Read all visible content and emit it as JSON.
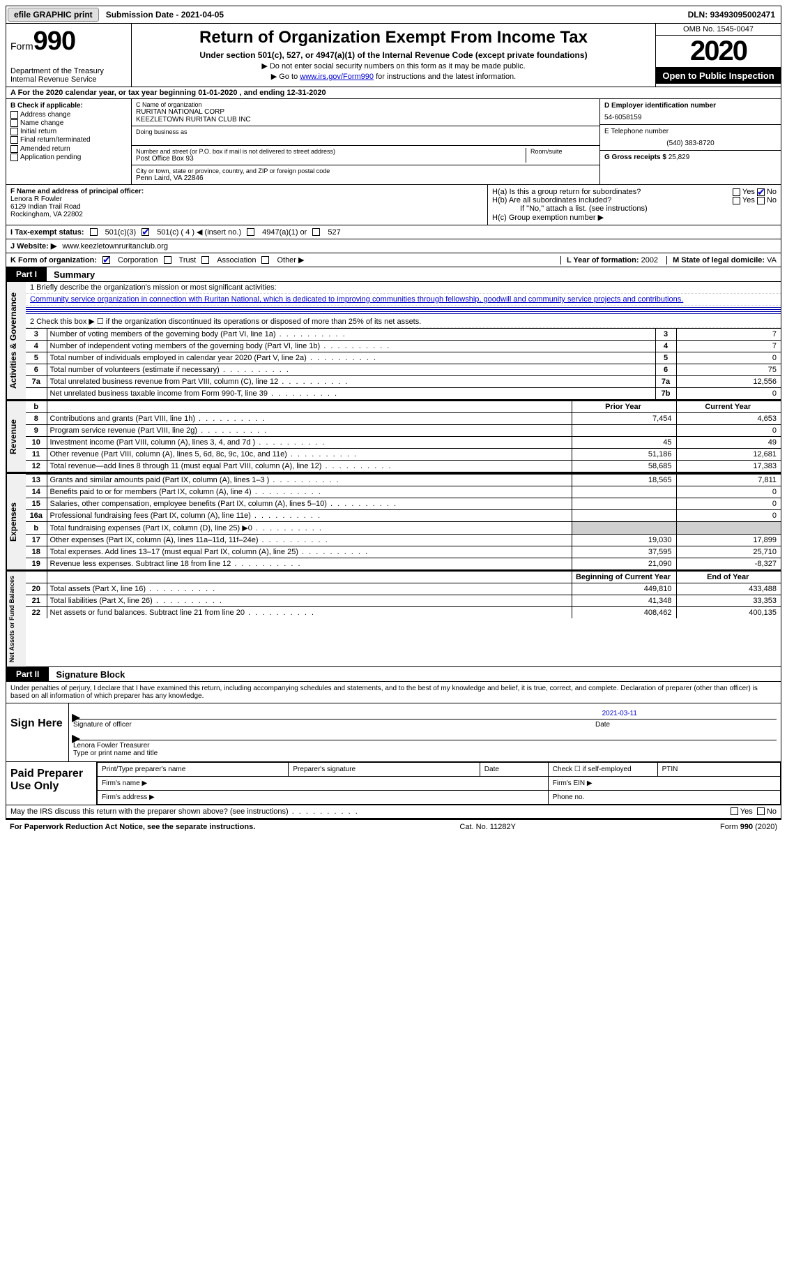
{
  "topbar": {
    "efile": "efile GRAPHIC print",
    "sub_label": "Submission Date - ",
    "sub_date": "2021-04-05",
    "dln_label": "DLN: ",
    "dln": "93493095002471"
  },
  "header": {
    "form_label": "Form",
    "form_num": "990",
    "dept": "Department of the Treasury\nInternal Revenue Service",
    "title": "Return of Organization Exempt From Income Tax",
    "sub1": "Under section 501(c), 527, or 4947(a)(1) of the Internal Revenue Code (except private foundations)",
    "sub2": "▶ Do not enter social security numbers on this form as it may be made public.",
    "sub3_pre": "▶ Go to ",
    "sub3_link": "www.irs.gov/Form990",
    "sub3_post": " for instructions and the latest information.",
    "omb": "OMB No. 1545-0047",
    "year": "2020",
    "inspect": "Open to Public Inspection"
  },
  "period": "A For the 2020 calendar year, or tax year beginning 01-01-2020    , and ending 12-31-2020",
  "boxB": {
    "header": "B Check if applicable:",
    "items": [
      "Address change",
      "Name change",
      "Initial return",
      "Final return/terminated",
      "Amended return",
      "Application pending"
    ]
  },
  "boxC": {
    "name_label": "C Name of organization",
    "name1": "RURITAN NATIONAL CORP",
    "name2": "KEEZLETOWN RURITAN CLUB INC",
    "dba_label": "Doing business as",
    "addr_label": "Number and street (or P.O. box if mail is not delivered to street address)",
    "room_label": "Room/suite",
    "addr": "Post Office Box 93",
    "city_label": "City or town, state or province, country, and ZIP or foreign postal code",
    "city": "Penn Laird, VA  22846"
  },
  "boxD": {
    "ein_label": "D Employer identification number",
    "ein": "54-6058159",
    "phone_label": "E Telephone number",
    "phone": "(540) 383-8720",
    "gross_label": "G Gross receipts $ ",
    "gross": "25,829"
  },
  "boxF": {
    "label": "F  Name and address of principal officer:",
    "name": "Lenora R Fowler",
    "addr1": "6129 Indian Trail Road",
    "addr2": "Rockingham, VA  22802"
  },
  "boxH": {
    "ha": "H(a)  Is this a group return for subordinates?",
    "hb": "H(b)  Are all subordinates included?",
    "hb_note": "If \"No,\" attach a list. (see instructions)",
    "hc": "H(c)  Group exemption number ▶",
    "yes": "Yes",
    "no": "No"
  },
  "status": {
    "label": "I    Tax-exempt status:",
    "opt1": "501(c)(3)",
    "opt2": "501(c) ( 4 ) ◀ (insert no.)",
    "opt3": "4947(a)(1) or",
    "opt4": "527"
  },
  "website": {
    "label": "J   Website: ▶",
    "value": "www.keezletownruritanclub.org"
  },
  "korg": {
    "label": "K Form of organization:",
    "opts": [
      "Corporation",
      "Trust",
      "Association",
      "Other ▶"
    ],
    "l_label": "L Year of formation: ",
    "l_val": "2002",
    "m_label": "M State of legal domicile: ",
    "m_val": "VA"
  },
  "part1": {
    "badge": "Part I",
    "title": "Summary"
  },
  "mission": {
    "q1": "1  Briefly describe the organization's mission or most significant activities:",
    "text": "Community service organization in connection with Ruritan National, which is dedicated to improving communities through fellowship, goodwill and community service projects and contributions.",
    "q2": "2    Check this box ▶ ☐  if the organization discontinued its operations or disposed of more than 25% of its net assets."
  },
  "sides": {
    "gov": "Activities & Governance",
    "rev": "Revenue",
    "exp": "Expenses",
    "net": "Net Assets or\nFund Balances"
  },
  "govrows": [
    {
      "n": "3",
      "d": "Number of voting members of the governing body (Part VI, line 1a)",
      "b": "3",
      "v": "7"
    },
    {
      "n": "4",
      "d": "Number of independent voting members of the governing body (Part VI, line 1b)",
      "b": "4",
      "v": "7"
    },
    {
      "n": "5",
      "d": "Total number of individuals employed in calendar year 2020 (Part V, line 2a)",
      "b": "5",
      "v": "0"
    },
    {
      "n": "6",
      "d": "Total number of volunteers (estimate if necessary)",
      "b": "6",
      "v": "75"
    },
    {
      "n": "7a",
      "d": "Total unrelated business revenue from Part VIII, column (C), line 12",
      "b": "7a",
      "v": "12,556"
    },
    {
      "n": "",
      "d": "Net unrelated business taxable income from Form 990-T, line 39",
      "b": "7b",
      "v": "0"
    }
  ],
  "colhdr": {
    "prior": "Prior Year",
    "current": "Current Year",
    "boy": "Beginning of Current Year",
    "eoy": "End of Year"
  },
  "revrows": [
    {
      "n": "8",
      "d": "Contributions and grants (Part VIII, line 1h)",
      "p": "7,454",
      "c": "4,653"
    },
    {
      "n": "9",
      "d": "Program service revenue (Part VIII, line 2g)",
      "p": "",
      "c": "0"
    },
    {
      "n": "10",
      "d": "Investment income (Part VIII, column (A), lines 3, 4, and 7d )",
      "p": "45",
      "c": "49"
    },
    {
      "n": "11",
      "d": "Other revenue (Part VIII, column (A), lines 5, 6d, 8c, 9c, 10c, and 11e)",
      "p": "51,186",
      "c": "12,681"
    },
    {
      "n": "12",
      "d": "Total revenue—add lines 8 through 11 (must equal Part VIII, column (A), line 12)",
      "p": "58,685",
      "c": "17,383"
    }
  ],
  "exprows": [
    {
      "n": "13",
      "d": "Grants and similar amounts paid (Part IX, column (A), lines 1–3 )",
      "p": "18,565",
      "c": "7,811"
    },
    {
      "n": "14",
      "d": "Benefits paid to or for members (Part IX, column (A), line 4)",
      "p": "",
      "c": "0"
    },
    {
      "n": "15",
      "d": "Salaries, other compensation, employee benefits (Part IX, column (A), lines 5–10)",
      "p": "",
      "c": "0"
    },
    {
      "n": "16a",
      "d": "Professional fundraising fees (Part IX, column (A), line 11e)",
      "p": "",
      "c": "0"
    },
    {
      "n": "b",
      "d": "Total fundraising expenses (Part IX, column (D), line 25) ▶0",
      "p": "shade",
      "c": "shade"
    },
    {
      "n": "17",
      "d": "Other expenses (Part IX, column (A), lines 11a–11d, 11f–24e)",
      "p": "19,030",
      "c": "17,899"
    },
    {
      "n": "18",
      "d": "Total expenses. Add lines 13–17 (must equal Part IX, column (A), line 25)",
      "p": "37,595",
      "c": "25,710"
    },
    {
      "n": "19",
      "d": "Revenue less expenses. Subtract line 18 from line 12",
      "p": "21,090",
      "c": "-8,327"
    }
  ],
  "netrows": [
    {
      "n": "20",
      "d": "Total assets (Part X, line 16)",
      "p": "449,810",
      "c": "433,488"
    },
    {
      "n": "21",
      "d": "Total liabilities (Part X, line 26)",
      "p": "41,348",
      "c": "33,353"
    },
    {
      "n": "22",
      "d": "Net assets or fund balances. Subtract line 21 from line 20",
      "p": "408,462",
      "c": "400,135"
    }
  ],
  "part2": {
    "badge": "Part II",
    "title": "Signature Block"
  },
  "sig": {
    "decl": "Under penalties of perjury, I declare that I have examined this return, including accompanying schedules and statements, and to the best of my knowledge and belief, it is true, correct, and complete. Declaration of preparer (other than officer) is based on all information of which preparer has any knowledge.",
    "here": "Sign Here",
    "sig_label": "Signature of officer",
    "date_label": "Date",
    "date": "2021-03-11",
    "name": "Lenora Fowler Treasurer",
    "name_label": "Type or print name and title"
  },
  "paid": {
    "left": "Paid Preparer Use Only",
    "h1": "Print/Type preparer's name",
    "h2": "Preparer's signature",
    "h3": "Date",
    "h4": "Check ☐ if self-employed",
    "h5": "PTIN",
    "firm_name": "Firm's name   ▶",
    "firm_ein": "Firm's EIN ▶",
    "firm_addr": "Firm's address ▶",
    "phone": "Phone no."
  },
  "bottom": {
    "q": "May the IRS discuss this return with the preparer shown above? (see instructions)",
    "yes": "Yes",
    "no": "No"
  },
  "footer": {
    "left": "For Paperwork Reduction Act Notice, see the separate instructions.",
    "mid": "Cat. No. 11282Y",
    "right": "Form 990 (2020)"
  }
}
